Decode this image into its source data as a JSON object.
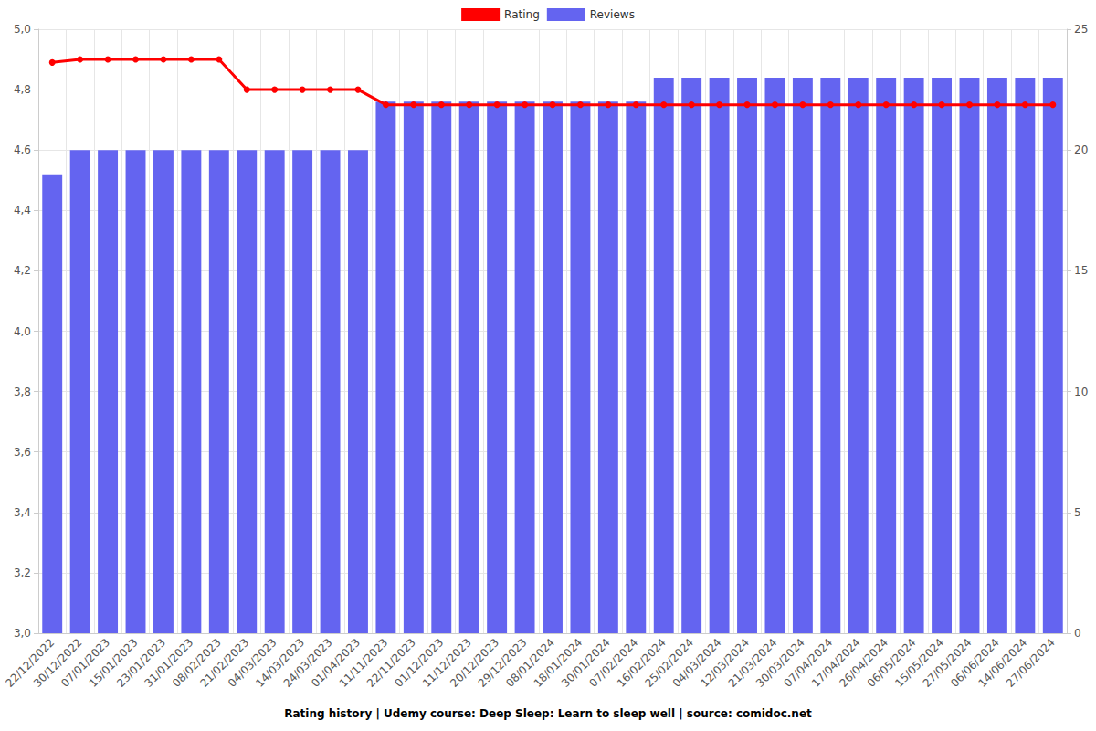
{
  "chart_data": {
    "type": "bar",
    "title": "Rating history | Udemy course: Deep Sleep: Learn to sleep well | source: comidoc.net",
    "categories": [
      "22/12/2022",
      "30/12/2022",
      "07/01/2023",
      "15/01/2023",
      "23/01/2023",
      "31/01/2023",
      "08/02/2023",
      "21/02/2023",
      "04/03/2023",
      "14/03/2023",
      "24/03/2023",
      "01/04/2023",
      "11/11/2023",
      "22/11/2023",
      "01/12/2023",
      "11/12/2023",
      "20/12/2023",
      "29/12/2023",
      "08/01/2024",
      "18/01/2024",
      "30/01/2024",
      "07/02/2024",
      "16/02/2024",
      "25/02/2024",
      "04/03/2024",
      "12/03/2024",
      "21/03/2024",
      "30/03/2024",
      "07/04/2024",
      "17/04/2024",
      "26/04/2024",
      "06/05/2024",
      "15/05/2024",
      "27/05/2024",
      "06/06/2024",
      "14/06/2024",
      "27/06/2024"
    ],
    "series": [
      {
        "name": "Rating",
        "type": "line",
        "color": "#ff0000",
        "marker": "circle",
        "values": [
          4.89,
          4.9,
          4.9,
          4.9,
          4.9,
          4.9,
          4.9,
          4.8,
          4.8,
          4.8,
          4.8,
          4.8,
          4.75,
          4.75,
          4.75,
          4.75,
          4.75,
          4.75,
          4.75,
          4.75,
          4.75,
          4.75,
          4.75,
          4.75,
          4.75,
          4.75,
          4.75,
          4.75,
          4.75,
          4.75,
          4.75,
          4.75,
          4.75,
          4.75,
          4.75,
          4.75,
          4.75
        ]
      },
      {
        "name": "Reviews",
        "type": "bar",
        "color": "#6464f0",
        "axis": "y2",
        "values": [
          19,
          20,
          20,
          20,
          20,
          20,
          20,
          20,
          20,
          20,
          20,
          20,
          22,
          22,
          22,
          22,
          22,
          22,
          22,
          22,
          22,
          22,
          23,
          23,
          23,
          23,
          23,
          23,
          23,
          23,
          23,
          23,
          23,
          23,
          23,
          23,
          23
        ]
      }
    ],
    "ylim": [
      3.0,
      5.0
    ],
    "yticks": [
      {
        "value": 3.0,
        "label": "3,0"
      },
      {
        "value": 3.2,
        "label": "3,2"
      },
      {
        "value": 3.4,
        "label": "3,4"
      },
      {
        "value": 3.6,
        "label": "3,6"
      },
      {
        "value": 3.8,
        "label": "3,8"
      },
      {
        "value": 4.0,
        "label": "4,0"
      },
      {
        "value": 4.2,
        "label": "4,2"
      },
      {
        "value": 4.4,
        "label": "4,4"
      },
      {
        "value": 4.6,
        "label": "4,6"
      },
      {
        "value": 4.8,
        "label": "4,8"
      },
      {
        "value": 5.0,
        "label": "5,0"
      }
    ],
    "y2lim": [
      0,
      25
    ],
    "y2ticks": [
      0,
      5,
      10,
      15,
      20,
      25
    ],
    "grid": true,
    "legend": "top"
  }
}
